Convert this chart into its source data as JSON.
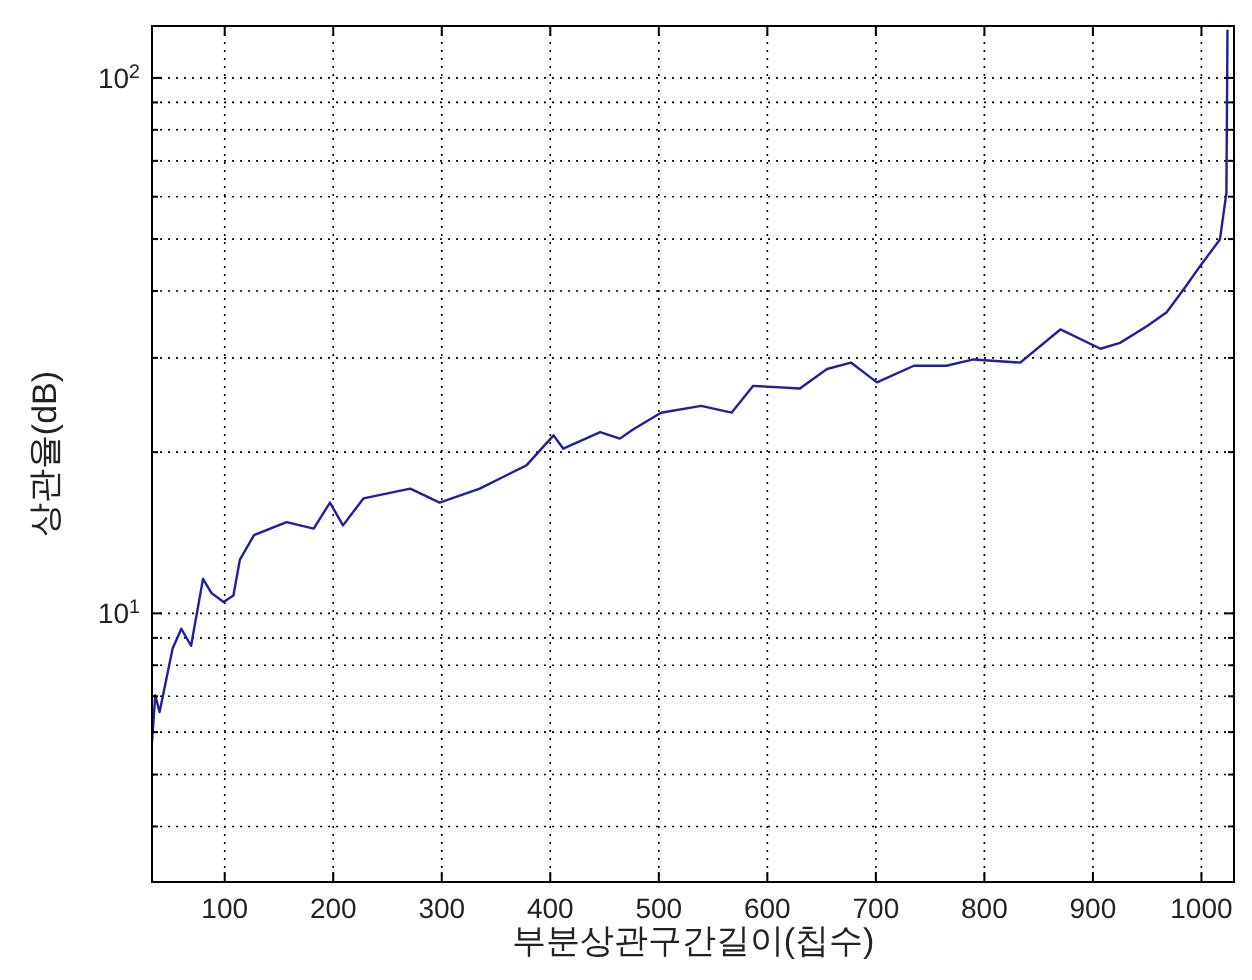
{
  "chart_data": {
    "type": "line",
    "xlabel": "부분상관구간길이(칩수)",
    "ylabel": "상관율(dB)",
    "x": [
      33,
      36,
      40,
      52,
      60,
      69,
      80,
      88,
      99,
      108,
      114,
      127,
      157,
      182,
      197,
      209,
      228,
      271,
      298,
      335,
      378,
      403,
      412,
      446,
      464,
      477,
      502,
      539,
      567,
      587,
      630,
      655,
      677,
      701,
      735,
      765,
      790,
      833,
      870,
      907,
      925,
      950,
      968,
      986,
      999,
      1017,
      1023,
      1024
    ],
    "series": [
      {
        "color": "#1f1fa0",
        "values": [
          5.75,
          7.03,
          6.54,
          8.6,
          9.36,
          8.7,
          11.6,
          10.9,
          10.5,
          10.8,
          12.6,
          14.0,
          14.8,
          14.4,
          16.1,
          14.6,
          16.4,
          17.1,
          16.1,
          17.1,
          18.9,
          21.5,
          20.3,
          21.8,
          21.2,
          22.1,
          23.7,
          24.4,
          23.7,
          26.6,
          26.3,
          28.6,
          29.4,
          27.0,
          29.0,
          29.0,
          29.8,
          29.4,
          33.9,
          31.2,
          32.0,
          34.4,
          36.5,
          40.9,
          44.6,
          49.9,
          61,
          123
        ]
      }
    ],
    "xlim": [
      33,
      1030
    ],
    "xticks": [
      100,
      200,
      300,
      400,
      500,
      600,
      700,
      800,
      900,
      1000
    ],
    "ylim": [
      3.15,
      125
    ],
    "log": true,
    "yticks": [
      {
        "value": 4,
        "label": null
      },
      {
        "value": 5,
        "label": null
      },
      {
        "value": 6,
        "label": null
      },
      {
        "value": 7,
        "label": null
      },
      {
        "value": 8,
        "label": null
      },
      {
        "value": 9,
        "label": null
      },
      {
        "value": 10,
        "label": "10$^{1}$"
      },
      {
        "value": 20,
        "label": null
      },
      {
        "value": 30,
        "label": null
      },
      {
        "value": 40,
        "label": null
      },
      {
        "value": 50,
        "label": null
      },
      {
        "value": 60,
        "label": null
      },
      {
        "value": 70,
        "label": null
      },
      {
        "value": 80,
        "label": null
      },
      {
        "value": 90,
        "label": null
      },
      {
        "value": 100,
        "label": "10$^{2}$"
      }
    ],
    "grid": true,
    "line_style": "solid",
    "marker": "none"
  }
}
